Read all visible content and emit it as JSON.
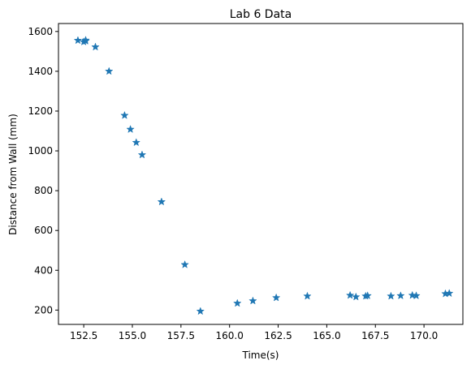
{
  "chart_data": {
    "type": "scatter",
    "title": "Lab 6 Data",
    "xlabel": "Time(s)",
    "ylabel": "Distance from Wall (mm)",
    "xlim": [
      151.2,
      172.0
    ],
    "ylim": [
      128,
      1640
    ],
    "xticks": [
      152.5,
      155.0,
      157.5,
      160.0,
      162.5,
      165.0,
      167.5,
      170.0
    ],
    "xtick_labels": [
      "152.5",
      "155.0",
      "157.5",
      "160.0",
      "162.5",
      "165.0",
      "167.5",
      "170.0"
    ],
    "yticks": [
      200,
      400,
      600,
      800,
      1000,
      1200,
      1400,
      1600
    ],
    "ytick_labels": [
      "200",
      "400",
      "600",
      "800",
      "1000",
      "1200",
      "1400",
      "1600"
    ],
    "marker": "star",
    "color": "#1f77b4",
    "grid": false,
    "legend": "none",
    "series": [
      {
        "x": [
          152.2,
          152.5,
          152.6,
          152.6,
          153.1,
          153.8,
          154.6,
          154.9,
          155.2,
          155.5,
          156.5,
          157.7,
          158.5,
          160.4,
          161.2,
          162.4,
          164.0,
          166.2,
          166.5,
          167.0,
          167.1,
          168.3,
          168.8,
          169.4,
          169.6,
          171.1,
          171.3
        ],
        "y": [
          1555,
          1548,
          1552,
          1556,
          1522,
          1400,
          1178,
          1108,
          1042,
          980,
          744,
          428,
          194,
          234,
          246,
          262,
          270,
          274,
          266,
          270,
          272,
          270,
          272,
          274,
          272,
          282,
          284
        ]
      }
    ]
  }
}
